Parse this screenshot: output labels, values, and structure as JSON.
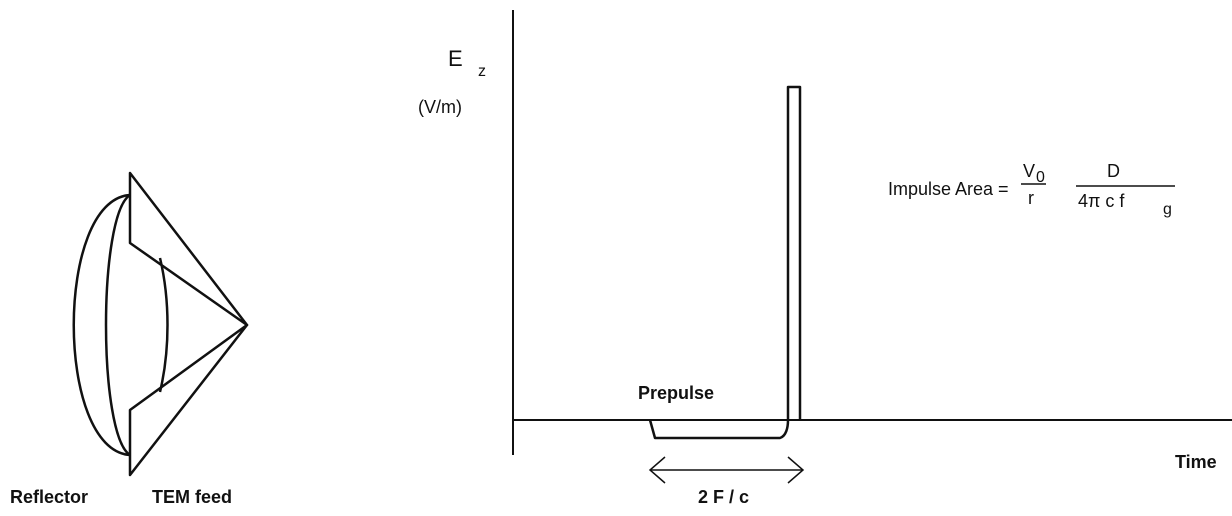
{
  "antenna": {
    "reflector_label": "Reflector",
    "feed_label": "TEM feed"
  },
  "waveform": {
    "y_label": "E",
    "y_label_sub": "z",
    "y_unit": "(V/m)",
    "x_label": "Time",
    "prepulse_label": "Prepulse",
    "duration_label": "2 F / c"
  },
  "formula": {
    "lhs": "Impulse Area =",
    "num1": "V",
    "num1_sub": "0",
    "den1": "r",
    "num2": "D",
    "den2": "4π  c  f",
    "den2_sub": "g"
  }
}
